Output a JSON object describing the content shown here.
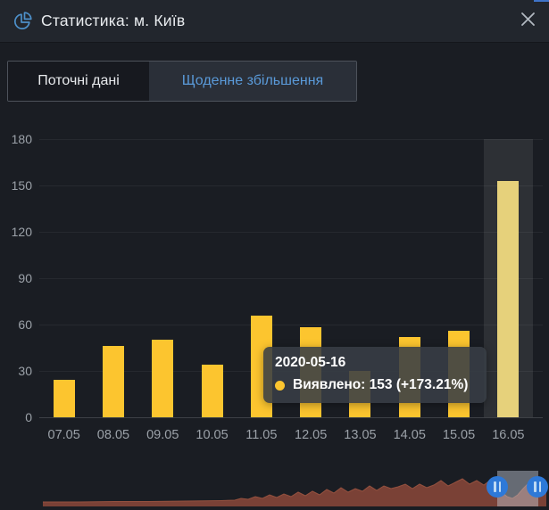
{
  "header": {
    "title": "Статистика: м. Київ",
    "icons": {
      "app": "pie-chart",
      "close": "✕"
    }
  },
  "tabs": [
    {
      "label": "Поточні дані",
      "active": false
    },
    {
      "label": "Щоденне збільшення",
      "active": true
    }
  ],
  "chart_data": {
    "type": "bar",
    "title": "",
    "xlabel": "",
    "ylabel": "",
    "categories": [
      "07.05",
      "08.05",
      "09.05",
      "10.05",
      "11.05",
      "12.05",
      "13.05",
      "14.05",
      "15.05",
      "16.05"
    ],
    "series_name": "Виявлено",
    "values": [
      24,
      46,
      50,
      34,
      66,
      58,
      30,
      52,
      56,
      153
    ],
    "ylim": [
      0,
      180
    ],
    "yticks": [
      0,
      30,
      60,
      90,
      120,
      150,
      180
    ],
    "grid": true,
    "legend": "none",
    "highlighted_index": 9
  },
  "tooltip": {
    "date": "2020-05-16",
    "line": "Виявлено: 153 (+173.21%)"
  },
  "navigator": {
    "selected_range": "16.05",
    "profile": [
      [
        0,
        5
      ],
      [
        40,
        5
      ],
      [
        80,
        5.5
      ],
      [
        120,
        5.5
      ],
      [
        160,
        6
      ],
      [
        200,
        6.5
      ],
      [
        215,
        7
      ],
      [
        222,
        9
      ],
      [
        230,
        8
      ],
      [
        238,
        11
      ],
      [
        246,
        9
      ],
      [
        254,
        13
      ],
      [
        262,
        10
      ],
      [
        270,
        14
      ],
      [
        278,
        11
      ],
      [
        286,
        16
      ],
      [
        294,
        12
      ],
      [
        302,
        17
      ],
      [
        310,
        13
      ],
      [
        318,
        19
      ],
      [
        326,
        15
      ],
      [
        334,
        21
      ],
      [
        342,
        16
      ],
      [
        350,
        20
      ],
      [
        358,
        17
      ],
      [
        366,
        23
      ],
      [
        374,
        18
      ],
      [
        382,
        23
      ],
      [
        390,
        20
      ],
      [
        398,
        22
      ],
      [
        406,
        25
      ],
      [
        414,
        20
      ],
      [
        422,
        25
      ],
      [
        430,
        21
      ],
      [
        438,
        24
      ],
      [
        446,
        29
      ],
      [
        454,
        23
      ],
      [
        462,
        27
      ],
      [
        470,
        31
      ],
      [
        478,
        25
      ],
      [
        486,
        29
      ],
      [
        494,
        24
      ],
      [
        502,
        30
      ],
      [
        508,
        26
      ],
      [
        514,
        16
      ],
      [
        520,
        11
      ],
      [
        526,
        9
      ],
      [
        532,
        13
      ],
      [
        538,
        20
      ],
      [
        544,
        26
      ],
      [
        550,
        32
      ],
      [
        556,
        28
      ],
      [
        560,
        22
      ],
      [
        564,
        18
      ]
    ]
  },
  "colors": {
    "bar": "#fcc52f",
    "bar_highlighted": "#e6d17b",
    "tab_active_text": "#5a9ad9",
    "icon_blue": "#4d90ca",
    "grip_blue": "#2e79d8",
    "nav_fill": "#7a4136",
    "nav_stroke": "#94513f"
  }
}
